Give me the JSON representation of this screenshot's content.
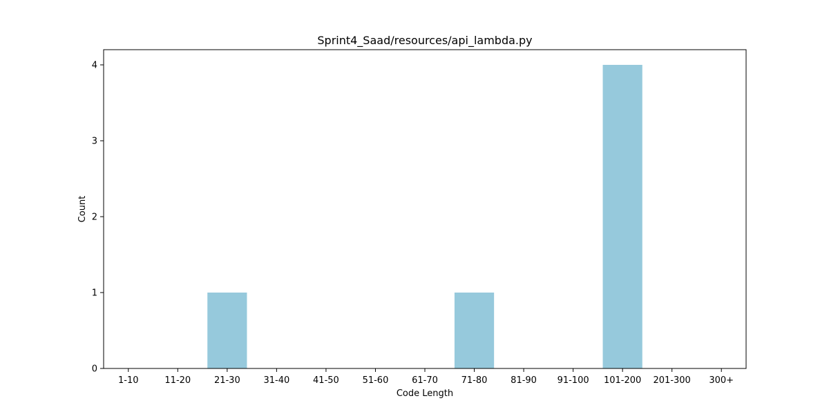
{
  "chart_data": {
    "type": "bar",
    "title": "Sprint4_Saad/resources/api_lambda.py",
    "xlabel": "Code Length",
    "ylabel": "Count",
    "categories": [
      "1-10",
      "11-20",
      "21-30",
      "31-40",
      "41-50",
      "51-60",
      "61-70",
      "71-80",
      "81-90",
      "91-100",
      "101-200",
      "201-300",
      "300+"
    ],
    "values": [
      0,
      0,
      1,
      0,
      0,
      0,
      0,
      1,
      0,
      0,
      4,
      0,
      0
    ],
    "ylim": [
      0,
      4.2
    ],
    "yticks": [
      0,
      1,
      2,
      3,
      4
    ],
    "grid": false,
    "legend": "none",
    "colors": {
      "bar": "#96c9dc",
      "axis": "#000000"
    }
  }
}
